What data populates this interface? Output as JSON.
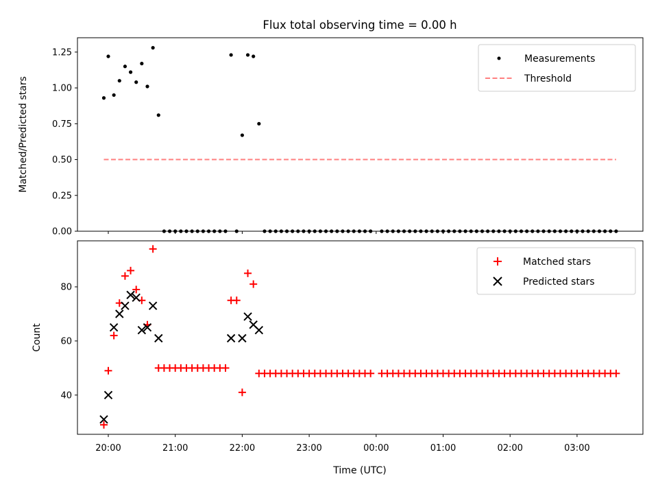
{
  "chart_data": [
    {
      "type": "scatter",
      "title": "Flux total observing time = 0.00 h",
      "xlabel": "",
      "ylabel": "Matched/Predicted stars",
      "ylim": [
        0,
        1.35
      ],
      "yticks": [
        "0.00",
        "0.25",
        "0.50",
        "0.75",
        "1.00",
        "1.25"
      ],
      "legend_position": "top-right",
      "series": [
        {
          "name": "Measurements",
          "marker": "dot",
          "color": "#000000",
          "points": [
            [
              "19:56",
              0.93
            ],
            [
              "20:00",
              1.22
            ],
            [
              "20:05",
              0.95
            ],
            [
              "20:10",
              1.05
            ],
            [
              "20:15",
              1.15
            ],
            [
              "20:20",
              1.11
            ],
            [
              "20:25",
              1.04
            ],
            [
              "20:30",
              1.17
            ],
            [
              "20:35",
              1.01
            ],
            [
              "20:40",
              1.28
            ],
            [
              "20:45",
              0.81
            ],
            [
              "20:50",
              0
            ],
            [
              "20:55",
              0
            ],
            [
              "21:00",
              0
            ],
            [
              "21:05",
              0
            ],
            [
              "21:10",
              0
            ],
            [
              "21:15",
              0
            ],
            [
              "21:20",
              0
            ],
            [
              "21:25",
              0
            ],
            [
              "21:30",
              0
            ],
            [
              "21:35",
              0
            ],
            [
              "21:40",
              0
            ],
            [
              "21:45",
              0
            ],
            [
              "21:50",
              1.23
            ],
            [
              "21:55",
              0
            ],
            [
              "22:00",
              0.67
            ],
            [
              "22:05",
              1.23
            ],
            [
              "22:10",
              1.22
            ],
            [
              "22:15",
              0.75
            ],
            [
              "22:20",
              0
            ],
            [
              "22:25",
              0
            ],
            [
              "22:30",
              0
            ],
            [
              "22:35",
              0
            ],
            [
              "22:40",
              0
            ],
            [
              "22:45",
              0
            ],
            [
              "22:50",
              0
            ],
            [
              "22:55",
              0
            ],
            [
              "23:00",
              0
            ],
            [
              "23:05",
              0
            ],
            [
              "23:10",
              0
            ],
            [
              "23:15",
              0
            ],
            [
              "23:20",
              0
            ],
            [
              "23:25",
              0
            ],
            [
              "23:30",
              0
            ],
            [
              "23:35",
              0
            ],
            [
              "23:40",
              0
            ],
            [
              "23:45",
              0
            ],
            [
              "23:50",
              0
            ],
            [
              "23:55",
              0
            ],
            [
              "00:05",
              0
            ],
            [
              "00:10",
              0
            ],
            [
              "00:15",
              0
            ],
            [
              "00:20",
              0
            ],
            [
              "00:25",
              0
            ],
            [
              "00:30",
              0
            ],
            [
              "00:35",
              0
            ],
            [
              "00:40",
              0
            ],
            [
              "00:45",
              0
            ],
            [
              "00:50",
              0
            ],
            [
              "00:55",
              0
            ],
            [
              "01:00",
              0
            ],
            [
              "01:05",
              0
            ],
            [
              "01:10",
              0
            ],
            [
              "01:15",
              0
            ],
            [
              "01:20",
              0
            ],
            [
              "01:25",
              0
            ],
            [
              "01:30",
              0
            ],
            [
              "01:35",
              0
            ],
            [
              "01:40",
              0
            ],
            [
              "01:45",
              0
            ],
            [
              "01:50",
              0
            ],
            [
              "01:55",
              0
            ],
            [
              "02:00",
              0
            ],
            [
              "02:05",
              0
            ],
            [
              "02:10",
              0
            ],
            [
              "02:15",
              0
            ],
            [
              "02:20",
              0
            ],
            [
              "02:25",
              0
            ],
            [
              "02:30",
              0
            ],
            [
              "02:35",
              0
            ],
            [
              "02:40",
              0
            ],
            [
              "02:45",
              0
            ],
            [
              "02:50",
              0
            ],
            [
              "02:55",
              0
            ],
            [
              "03:00",
              0
            ],
            [
              "03:05",
              0
            ],
            [
              "03:10",
              0
            ],
            [
              "03:15",
              0
            ],
            [
              "03:20",
              0
            ],
            [
              "03:25",
              0
            ],
            [
              "03:30",
              0
            ],
            [
              "03:35",
              0
            ]
          ]
        },
        {
          "name": "Threshold",
          "marker": "dashed-line",
          "color": "#ff7f7f",
          "points": [
            [
              "19:56",
              0.5
            ],
            [
              "03:35",
              0.5
            ]
          ]
        }
      ]
    },
    {
      "type": "scatter",
      "title": "",
      "xlabel": "Time (UTC)",
      "ylabel": "Count",
      "ylim": [
        25.5,
        97
      ],
      "yticks": [
        "40",
        "60",
        "80"
      ],
      "xticks": [
        "20:00",
        "21:00",
        "22:00",
        "23:00",
        "00:00",
        "01:00",
        "02:00",
        "03:00"
      ],
      "legend_position": "top-right",
      "series": [
        {
          "name": "Matched stars",
          "marker": "plus",
          "color": "#ff0000",
          "points": [
            [
              "19:56",
              29
            ],
            [
              "20:00",
              49
            ],
            [
              "20:05",
              62
            ],
            [
              "20:10",
              74
            ],
            [
              "20:15",
              84
            ],
            [
              "20:20",
              86
            ],
            [
              "20:25",
              79
            ],
            [
              "20:30",
              75
            ],
            [
              "20:35",
              66
            ],
            [
              "20:40",
              94
            ],
            [
              "20:45",
              50
            ],
            [
              "20:50",
              50
            ],
            [
              "20:55",
              50
            ],
            [
              "21:00",
              50
            ],
            [
              "21:05",
              50
            ],
            [
              "21:10",
              50
            ],
            [
              "21:15",
              50
            ],
            [
              "21:20",
              50
            ],
            [
              "21:25",
              50
            ],
            [
              "21:30",
              50
            ],
            [
              "21:35",
              50
            ],
            [
              "21:40",
              50
            ],
            [
              "21:45",
              50
            ],
            [
              "21:50",
              75
            ],
            [
              "21:55",
              75
            ],
            [
              "22:00",
              41
            ],
            [
              "22:05",
              85
            ],
            [
              "22:10",
              81
            ],
            [
              "22:15",
              48
            ],
            [
              "22:20",
              48
            ],
            [
              "22:25",
              48
            ],
            [
              "22:30",
              48
            ],
            [
              "22:35",
              48
            ],
            [
              "22:40",
              48
            ],
            [
              "22:45",
              48
            ],
            [
              "22:50",
              48
            ],
            [
              "22:55",
              48
            ],
            [
              "23:00",
              48
            ],
            [
              "23:05",
              48
            ],
            [
              "23:10",
              48
            ],
            [
              "23:15",
              48
            ],
            [
              "23:20",
              48
            ],
            [
              "23:25",
              48
            ],
            [
              "23:30",
              48
            ],
            [
              "23:35",
              48
            ],
            [
              "23:40",
              48
            ],
            [
              "23:45",
              48
            ],
            [
              "23:50",
              48
            ],
            [
              "23:55",
              48
            ],
            [
              "00:05",
              48
            ],
            [
              "00:10",
              48
            ],
            [
              "00:15",
              48
            ],
            [
              "00:20",
              48
            ],
            [
              "00:25",
              48
            ],
            [
              "00:30",
              48
            ],
            [
              "00:35",
              48
            ],
            [
              "00:40",
              48
            ],
            [
              "00:45",
              48
            ],
            [
              "00:50",
              48
            ],
            [
              "00:55",
              48
            ],
            [
              "01:00",
              48
            ],
            [
              "01:05",
              48
            ],
            [
              "01:10",
              48
            ],
            [
              "01:15",
              48
            ],
            [
              "01:20",
              48
            ],
            [
              "01:25",
              48
            ],
            [
              "01:30",
              48
            ],
            [
              "01:35",
              48
            ],
            [
              "01:40",
              48
            ],
            [
              "01:45",
              48
            ],
            [
              "01:50",
              48
            ],
            [
              "01:55",
              48
            ],
            [
              "02:00",
              48
            ],
            [
              "02:05",
              48
            ],
            [
              "02:10",
              48
            ],
            [
              "02:15",
              48
            ],
            [
              "02:20",
              48
            ],
            [
              "02:25",
              48
            ],
            [
              "02:30",
              48
            ],
            [
              "02:35",
              48
            ],
            [
              "02:40",
              48
            ],
            [
              "02:45",
              48
            ],
            [
              "02:50",
              48
            ],
            [
              "02:55",
              48
            ],
            [
              "03:00",
              48
            ],
            [
              "03:05",
              48
            ],
            [
              "03:10",
              48
            ],
            [
              "03:15",
              48
            ],
            [
              "03:20",
              48
            ],
            [
              "03:25",
              48
            ],
            [
              "03:30",
              48
            ],
            [
              "03:35",
              48
            ]
          ]
        },
        {
          "name": "Predicted stars",
          "marker": "x",
          "color": "#000000",
          "points": [
            [
              "19:56",
              31
            ],
            [
              "20:00",
              40
            ],
            [
              "20:05",
              65
            ],
            [
              "20:10",
              70
            ],
            [
              "20:15",
              73
            ],
            [
              "20:20",
              77
            ],
            [
              "20:25",
              76
            ],
            [
              "20:30",
              64
            ],
            [
              "20:35",
              65
            ],
            [
              "20:40",
              73
            ],
            [
              "20:45",
              61
            ],
            [
              "21:50",
              61
            ],
            [
              "22:00",
              61
            ],
            [
              "22:05",
              69
            ],
            [
              "22:10",
              66
            ],
            [
              "22:15",
              64
            ]
          ]
        }
      ]
    }
  ]
}
